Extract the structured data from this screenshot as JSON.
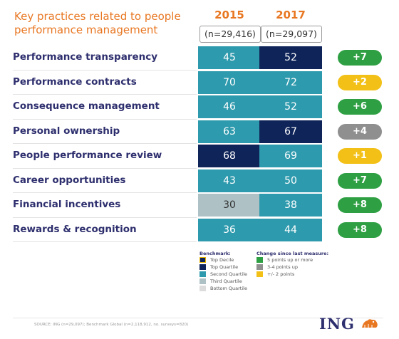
{
  "title": "Key practices related to people performance management",
  "header": {
    "years": [
      "2015",
      "2017"
    ],
    "n": [
      "(n=29,416)",
      "(n=29,097)"
    ]
  },
  "colors": {
    "top_decile": "#0f2459",
    "top_quartile": "#0f2459",
    "second_quartile": "#2e9aad",
    "third_quartile": "#aec2c6",
    "bottom_quartile": "#dcdcdc",
    "change_5_up": "#2ea043",
    "change_3_4_up": "#8f8f8f",
    "change_2": "#f2c016",
    "title_orange": "#e87722",
    "label_navy": "#2e2f6e"
  },
  "chart_data": {
    "type": "table",
    "title": "Key practices related to people performance management",
    "columns": [
      "2015",
      "2017"
    ],
    "rows": [
      {
        "label": "Performance transparency",
        "v2015": 45,
        "v2017": 52,
        "q2015": "second",
        "q2017": "top",
        "change": "+7",
        "change_cat": "5up"
      },
      {
        "label": "Performance contracts",
        "v2015": 70,
        "v2017": 72,
        "q2015": "second",
        "q2017": "second",
        "change": "+2",
        "change_cat": "2"
      },
      {
        "label": "Consequence management",
        "v2015": 46,
        "v2017": 52,
        "q2015": "second",
        "q2017": "second",
        "change": "+6",
        "change_cat": "5up"
      },
      {
        "label": "Personal ownership",
        "v2015": 63,
        "v2017": 67,
        "q2015": "second",
        "q2017": "top",
        "change": "+4",
        "change_cat": "3to4"
      },
      {
        "label": "People performance review",
        "v2015": 68,
        "v2017": 69,
        "q2015": "top",
        "q2017": "second",
        "change": "+1",
        "change_cat": "2"
      },
      {
        "label": "Career opportunities",
        "v2015": 43,
        "v2017": 50,
        "q2015": "second",
        "q2017": "second",
        "change": "+7",
        "change_cat": "5up"
      },
      {
        "label": "Financial incentives",
        "v2015": 30,
        "v2017": 38,
        "q2015": "third",
        "q2017": "second",
        "change": "+8",
        "change_cat": "5up"
      },
      {
        "label": "Rewards & recognition",
        "v2015": 36,
        "v2017": 44,
        "q2015": "second",
        "q2017": "second",
        "change": "+8",
        "change_cat": "5up"
      }
    ]
  },
  "legend": {
    "benchmark_title": "Benchmark:",
    "benchmark_items": [
      {
        "label": "Top Decile",
        "key": "top_decile"
      },
      {
        "label": "Top Quartile",
        "key": "top_quartile"
      },
      {
        "label": "Second Quartile",
        "key": "second_quartile"
      },
      {
        "label": "Third Quartile",
        "key": "third_quartile"
      },
      {
        "label": "Bottom Quartile",
        "key": "bottom_quartile"
      }
    ],
    "change_title": "Change since last measure:",
    "change_items": [
      {
        "label": "5 points up or more",
        "key": "change_5_up"
      },
      {
        "label": "3-4 points up",
        "key": "change_3_4_up"
      },
      {
        "label": "+/- 2 points",
        "key": "change_2"
      }
    ]
  },
  "source": "SOURCE: ING (n=29,097); Benchmark Global (n=2,118,912, no. surveys=820)",
  "logo": "ING"
}
